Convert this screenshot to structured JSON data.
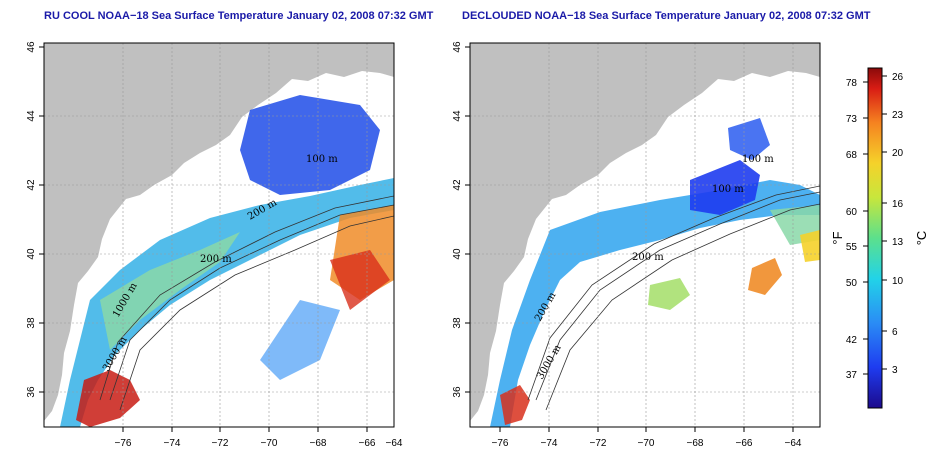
{
  "panels": [
    {
      "title": "RU COOL NOAA−18 Sea Surface Temperature January 02, 2008 07:32 GMT",
      "x_ticks": [
        "−76",
        "−74",
        "−72",
        "−70",
        "−68",
        "−66",
        "−64"
      ],
      "y_ticks": [
        "36",
        "38",
        "40",
        "42",
        "44",
        "46"
      ],
      "contour_labels": [
        "100 m",
        "200 m",
        "200 m",
        "3000 m",
        "1000 m"
      ]
    },
    {
      "title": "DECLOUDED NOAA−18 Sea Surface Temperature January 02, 2008 07:32 GMT",
      "x_ticks": [
        "−76",
        "−74",
        "−72",
        "−70",
        "−68",
        "−66",
        "−64"
      ],
      "y_ticks": [
        "36",
        "38",
        "40",
        "42",
        "44",
        "46"
      ],
      "contour_labels": [
        "100 m",
        "100 m",
        "200 m",
        "200 m",
        "3000 m"
      ]
    }
  ],
  "colorbar": {
    "f_ticks": [
      "78",
      "73",
      "68",
      "60",
      "55",
      "50",
      "42",
      "37"
    ],
    "c_ticks": [
      "26",
      "23",
      "20",
      "16",
      "13",
      "10",
      "6",
      "3"
    ],
    "f_unit": "°F",
    "c_unit": "°C"
  },
  "colors": {
    "land": "#c0c0c0",
    "ocean_nodata": "#ffffff",
    "title": "#1a1aa8"
  }
}
